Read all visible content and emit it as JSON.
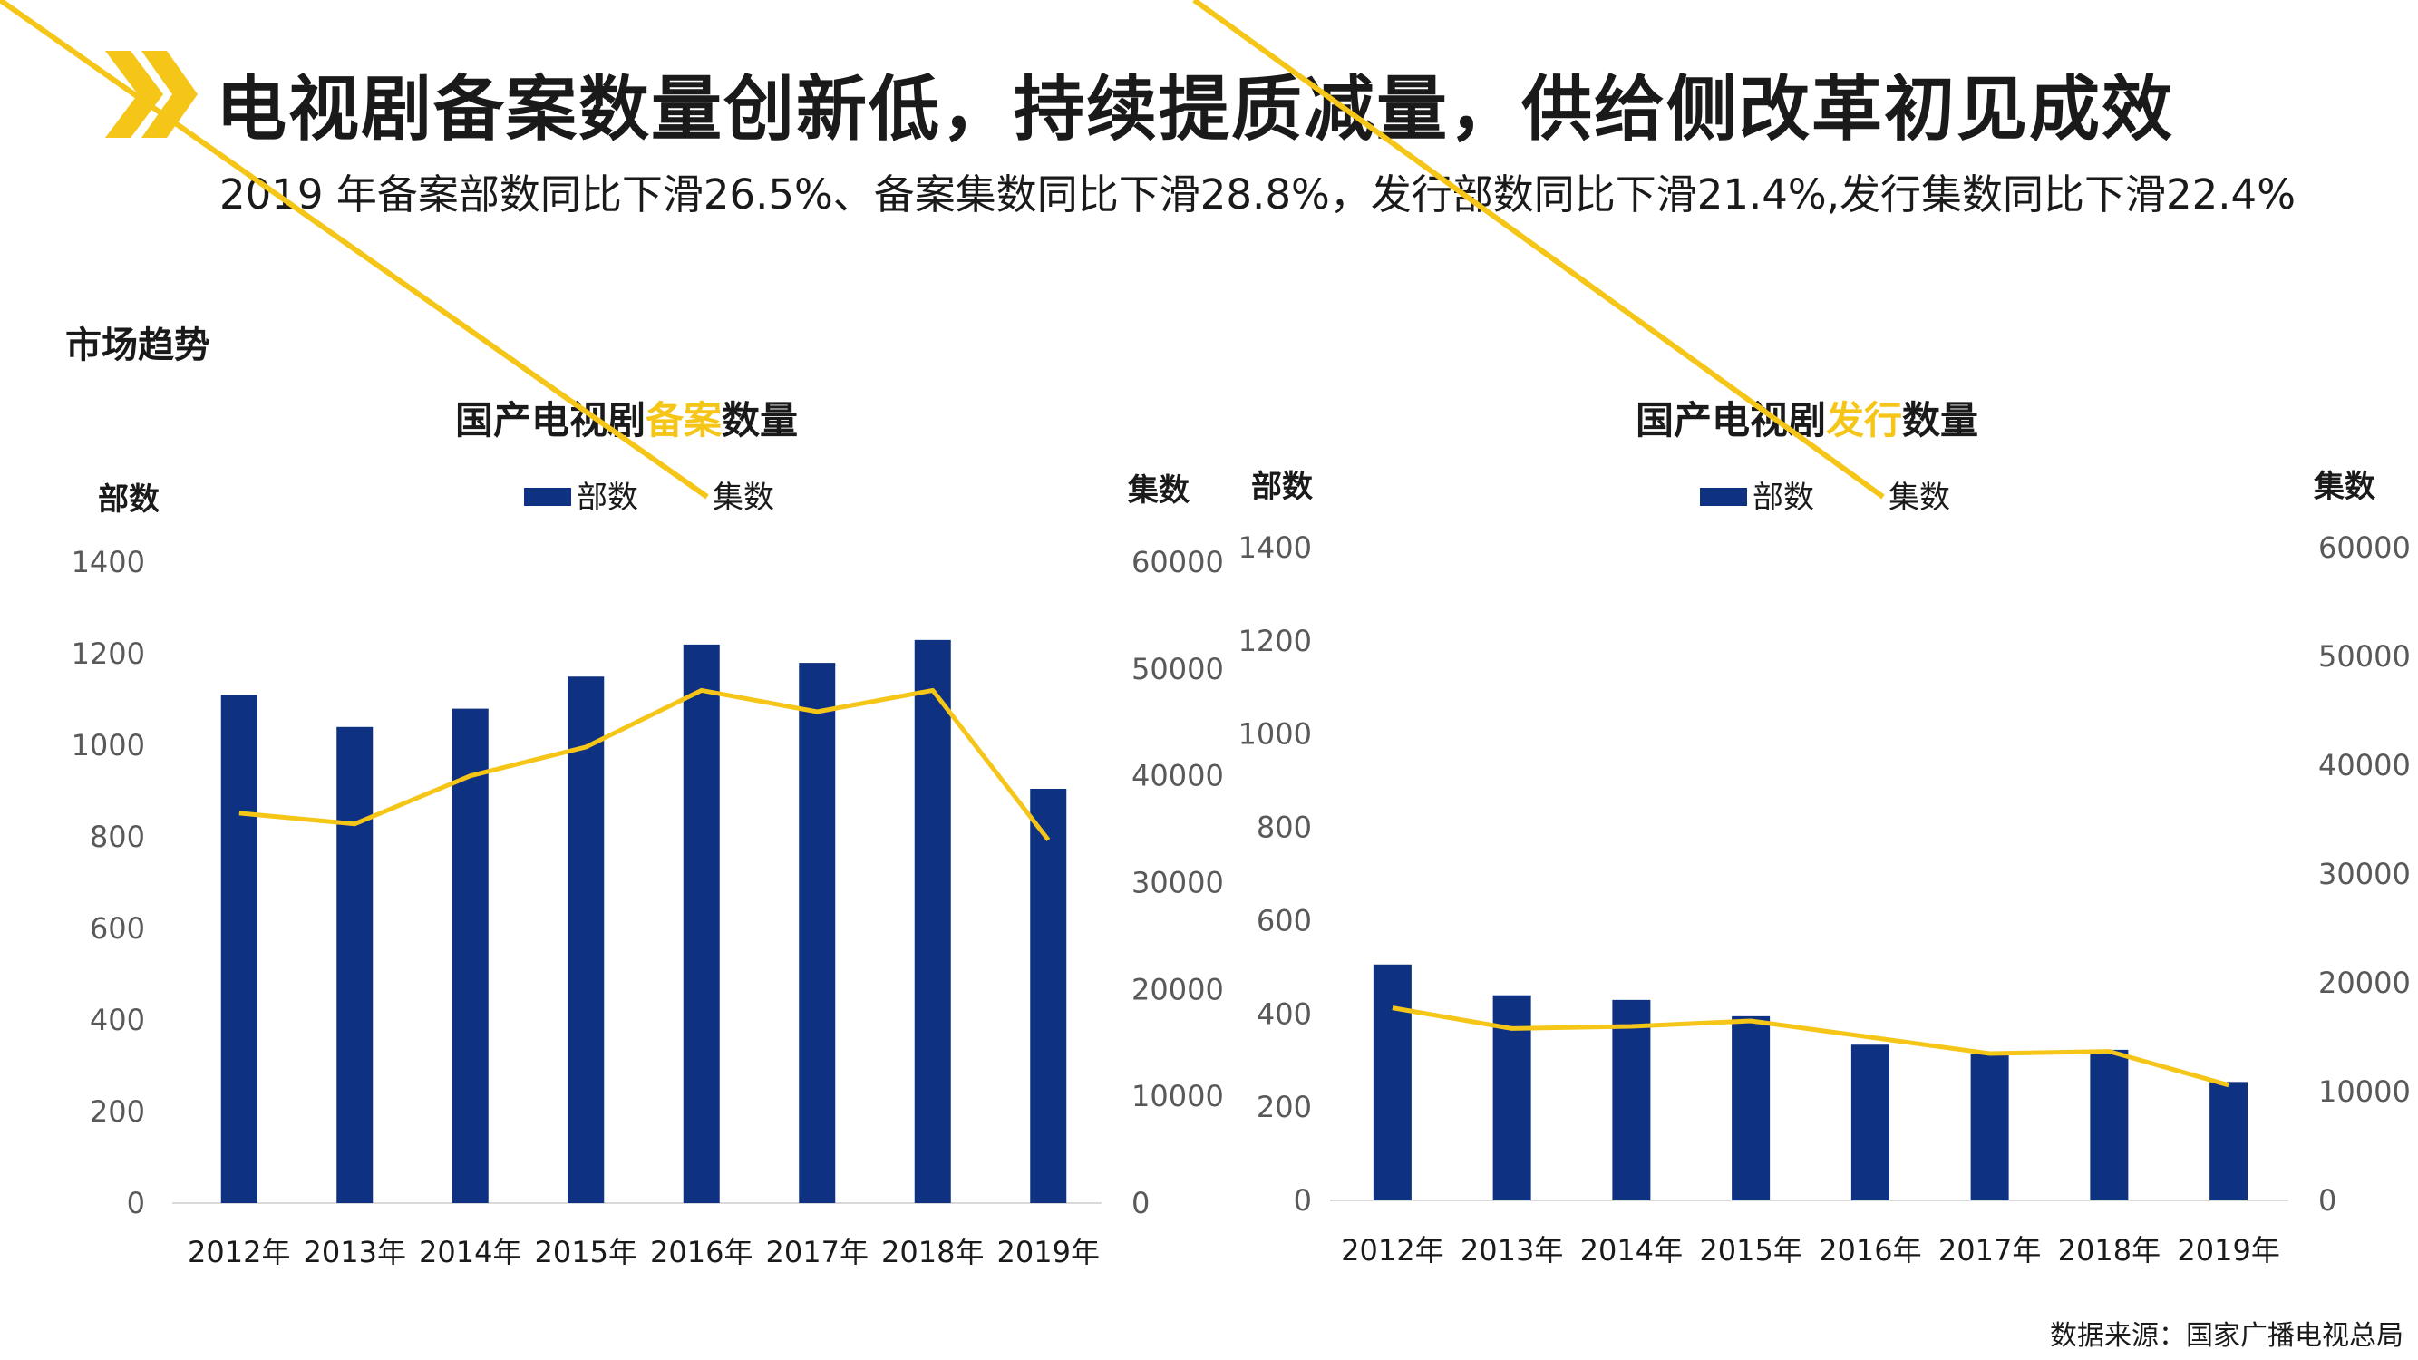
{
  "header": {
    "headline": "电视剧备案数量创新低，持续提质减量，供给侧改革初见成效",
    "subtitle": "2019 年备案部数同比下滑26.5%、备案集数同比下滑28.8%，发行部数同比下滑21.4%,发行集数同比下滑22.4%"
  },
  "section_label": "市场趋势",
  "source": "数据来源：国家广播电视总局",
  "colors": {
    "bar": "#0e3182",
    "line": "#f5c518",
    "accent": "#f5c518"
  },
  "chart_data": [
    {
      "type": "bar",
      "title_parts": [
        "国产电视剧",
        "备案",
        "数量"
      ],
      "legend": [
        "部数",
        "集数"
      ],
      "ylabel_left": "部数",
      "ylabel_right": "集数",
      "left_ticks": [
        "1400",
        "1200",
        "1000",
        "800",
        "600",
        "400",
        "200",
        "0"
      ],
      "right_ticks": [
        "60000",
        "50000",
        "40000",
        "30000",
        "20000",
        "10000",
        "0"
      ],
      "categories": [
        "2012年",
        "2013年",
        "2014年",
        "2015年",
        "2016年",
        "2017年",
        "2018年",
        "2019年"
      ],
      "ylim_left": [
        0,
        1400
      ],
      "ylim_right": [
        0,
        60000
      ],
      "series": [
        {
          "name": "部数",
          "kind": "bar",
          "axis": "left",
          "values": [
            1110,
            1040,
            1080,
            1150,
            1220,
            1180,
            1230,
            905
          ]
        },
        {
          "name": "集数",
          "kind": "line",
          "axis": "right",
          "values": [
            36500,
            35500,
            40000,
            42700,
            48000,
            46000,
            48000,
            34000
          ]
        }
      ]
    },
    {
      "type": "bar",
      "title_parts": [
        "国产电视剧",
        "发行",
        "数量"
      ],
      "legend": [
        "部数",
        "集数"
      ],
      "ylabel_left": "部数",
      "ylabel_right": "集数",
      "left_ticks": [
        "1400",
        "1200",
        "1000",
        "800",
        "600",
        "400",
        "200",
        "0"
      ],
      "right_ticks": [
        "60000",
        "50000",
        "40000",
        "30000",
        "20000",
        "10000",
        "0"
      ],
      "categories": [
        "2012年",
        "2013年",
        "2014年",
        "2015年",
        "2016年",
        "2017年",
        "2018年",
        "2019年"
      ],
      "ylim_left": [
        0,
        1400
      ],
      "ylim_right": [
        0,
        60000
      ],
      "series": [
        {
          "name": "部数",
          "kind": "bar",
          "axis": "left",
          "values": [
            506,
            440,
            430,
            395,
            334,
            314,
            323,
            254
          ]
        },
        {
          "name": "集数",
          "kind": "line",
          "axis": "right",
          "values": [
            17700,
            15800,
            16000,
            16500,
            15000,
            13500,
            13700,
            10600
          ]
        }
      ]
    }
  ]
}
